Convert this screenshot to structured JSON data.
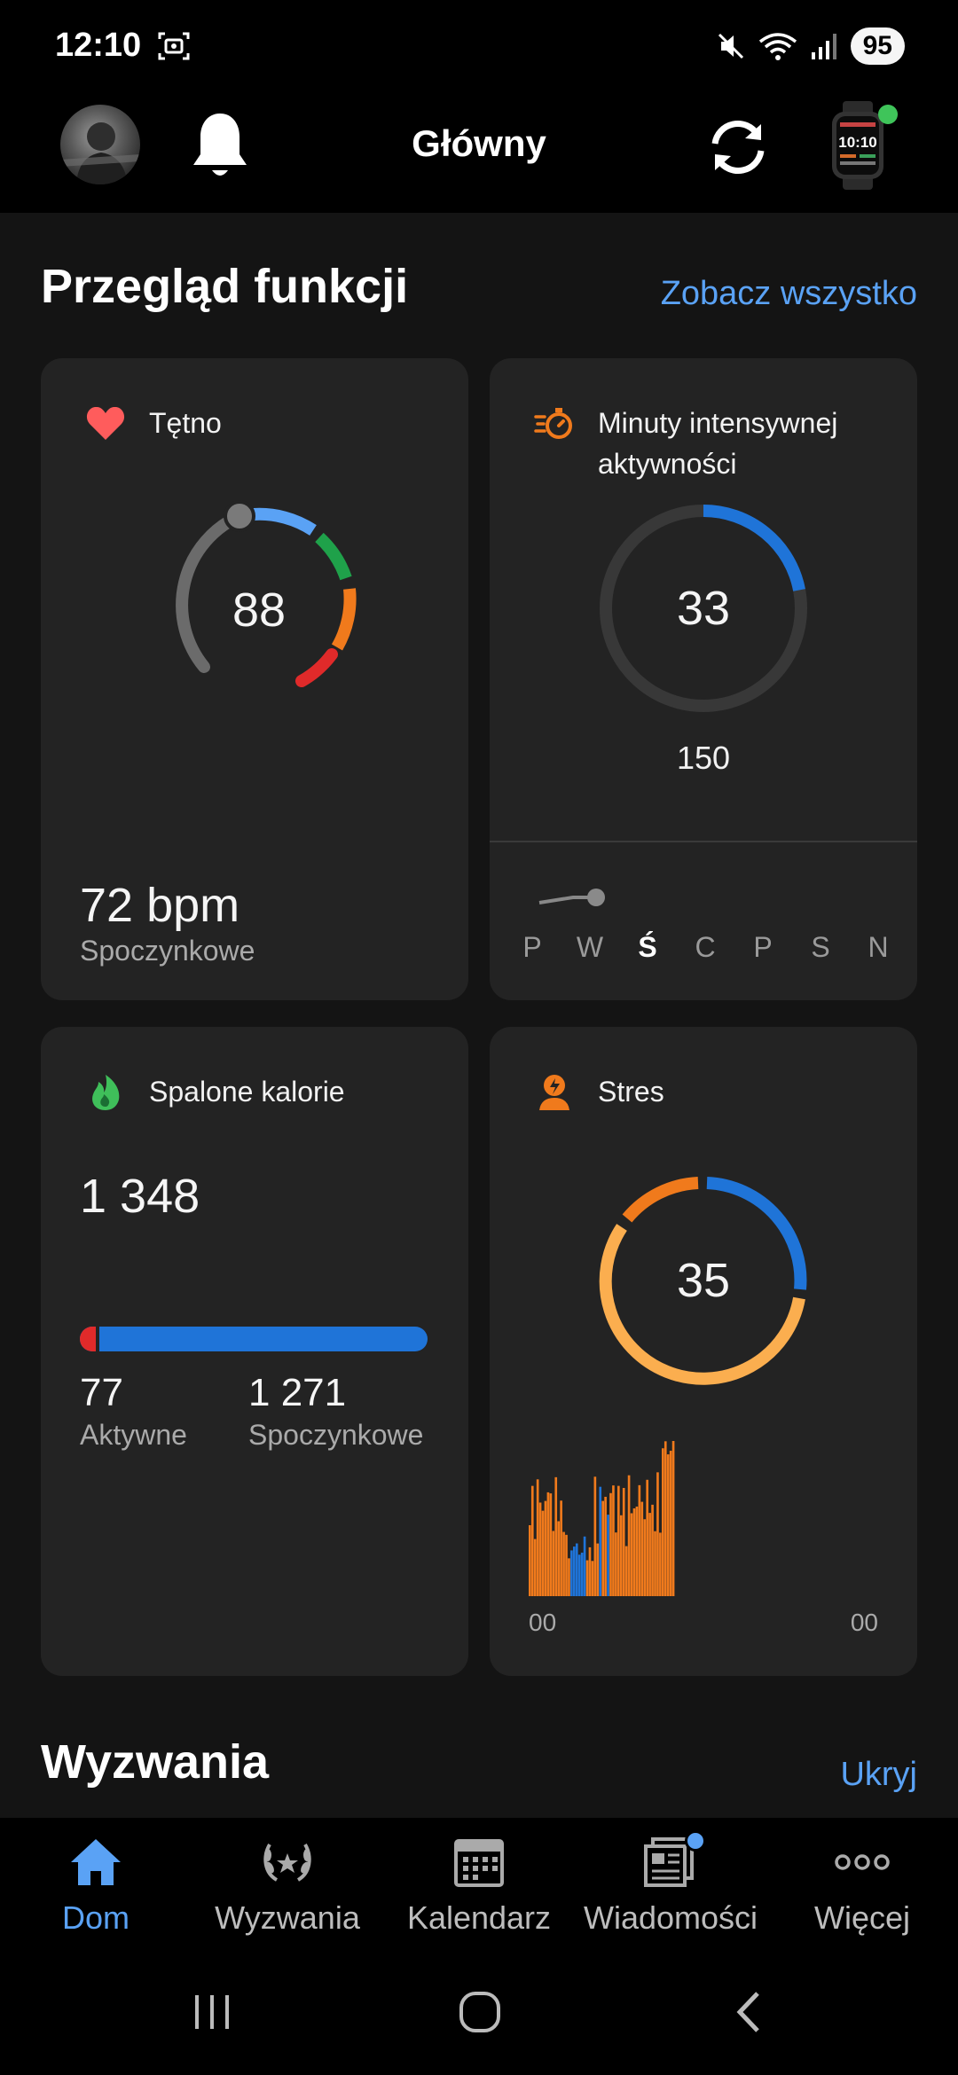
{
  "status_bar": {
    "time": "12:10",
    "battery": "95"
  },
  "header": {
    "title": "Główny"
  },
  "overview": {
    "title": "Przegląd funkcji",
    "link": "Zobacz wszystko"
  },
  "heart_rate": {
    "title": "Tętno",
    "current": "88",
    "resting_value": "72 bpm",
    "resting_label": "Spoczynkowe"
  },
  "intensity": {
    "title": "Minuty intensywnej aktywności",
    "value": "33",
    "goal": "150",
    "progress_fraction": 0.22,
    "days": [
      "P",
      "W",
      "Ś",
      "C",
      "P",
      "S",
      "N"
    ],
    "current_day_index": 2
  },
  "calories": {
    "title": "Spalone kalorie",
    "total": "1 348",
    "active_value": "77",
    "active_label": "Aktywne",
    "resting_value": "1 271",
    "resting_label": "Spoczynkowe",
    "active_fraction": 0.057
  },
  "stress": {
    "title": "Stres",
    "value": "35",
    "start_label": "00",
    "end_label": "00"
  },
  "challenges": {
    "title": "Wyzwania",
    "link": "Ukryj"
  },
  "nav": [
    {
      "label": "Dom",
      "icon": "home-icon"
    },
    {
      "label": "Wyzwania",
      "icon": "laurel-icon"
    },
    {
      "label": "Kalendarz",
      "icon": "calendar-icon"
    },
    {
      "label": "Wiadomości",
      "icon": "news-icon"
    },
    {
      "label": "Więcej",
      "icon": "more-icon"
    }
  ],
  "colors": {
    "accent": "#5aa2f5",
    "blue": "#1f74d8",
    "orange": "#f07a1c",
    "light_orange": "#fbae4f",
    "green": "#1fa14a",
    "red": "#e02a2a",
    "heart": "#ff5c5c"
  }
}
